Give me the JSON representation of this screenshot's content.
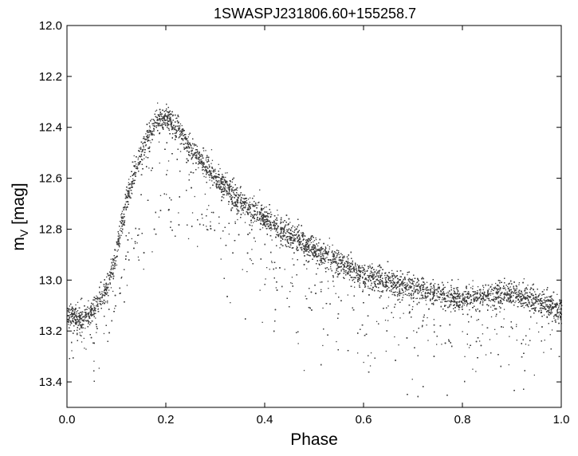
{
  "chart_data": {
    "type": "scatter",
    "title": "1SWASPJ231806.60+155258.7",
    "xlabel": "Phase",
    "ylabel": {
      "base": "m",
      "sub": "V",
      "rest": " [mag]"
    },
    "xlim": [
      0.0,
      1.0
    ],
    "ylim": [
      13.5,
      12.0
    ],
    "y_inverted": true,
    "grid": false,
    "legend": "none",
    "x_ticks": [
      "0.0",
      "0.2",
      "0.4",
      "0.6",
      "0.8",
      "1.0"
    ],
    "y_ticks": [
      "12.0",
      "12.2",
      "12.4",
      "12.6",
      "12.8",
      "13.0",
      "13.2",
      "13.4"
    ],
    "marker_color": "#3c3c3c",
    "series": [
      {
        "description_points": "mean light curve (phase, magnitude)",
        "x": [
          0.0,
          0.02,
          0.04,
          0.06,
          0.08,
          0.1,
          0.12,
          0.14,
          0.16,
          0.18,
          0.2,
          0.22,
          0.25,
          0.3,
          0.35,
          0.4,
          0.45,
          0.5,
          0.55,
          0.6,
          0.65,
          0.7,
          0.75,
          0.8,
          0.85,
          0.9,
          0.95,
          1.0
        ],
        "y": [
          13.13,
          13.15,
          13.14,
          13.1,
          13.03,
          12.88,
          12.68,
          12.55,
          12.45,
          12.38,
          12.36,
          12.4,
          12.48,
          12.6,
          12.69,
          12.76,
          12.82,
          12.87,
          12.93,
          12.98,
          13.01,
          13.03,
          13.05,
          13.07,
          13.06,
          13.05,
          13.08,
          13.12
        ]
      },
      {
        "description_points": "lower secondary branch of scatter",
        "x": [
          0.08,
          0.1,
          0.12,
          0.14,
          0.16,
          0.18,
          0.2,
          0.22,
          0.25,
          0.28,
          0.3
        ],
        "y": [
          13.1,
          13.0,
          12.92,
          12.86,
          12.82,
          12.78,
          12.76,
          12.74,
          12.73,
          12.76,
          12.8
        ]
      }
    ],
    "n_points_rendered": 15000
  }
}
